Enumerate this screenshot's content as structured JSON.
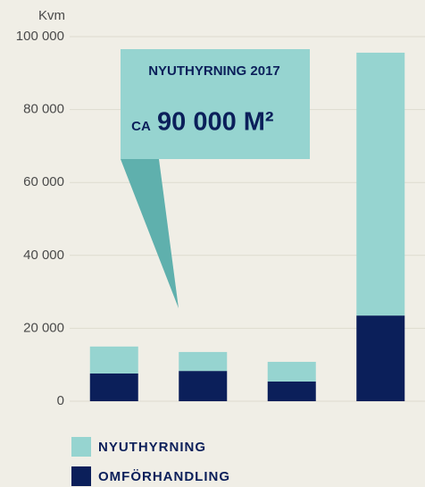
{
  "chart_data": {
    "type": "bar",
    "stacked": true,
    "ylabel": "Kvm",
    "categories": [
      null,
      null,
      null,
      null
    ],
    "series": [
      {
        "name": "OMFÖRHANDLING",
        "color": "#0b1f5a",
        "values": [
          7600,
          8300,
          5400,
          23500
        ]
      },
      {
        "name": "NYUTHYRNING",
        "color": "#96d4d0",
        "values": [
          7400,
          5200,
          5400,
          72100
        ]
      }
    ],
    "ylim": [
      0,
      100000
    ],
    "yticks": [
      0,
      {
        "value": 20000,
        "label": "20 000"
      },
      {
        "value": 40000,
        "label": "40 000"
      },
      {
        "value": 60000,
        "label": "60 000"
      },
      {
        "value": 80000,
        "label": "80 000"
      },
      {
        "value": 100000,
        "label": "100 000"
      }
    ],
    "grid": true,
    "annotation": {
      "title": "NYUTHYRNING 2017",
      "prefix": "CA",
      "value": "90 000 M²"
    }
  }
}
